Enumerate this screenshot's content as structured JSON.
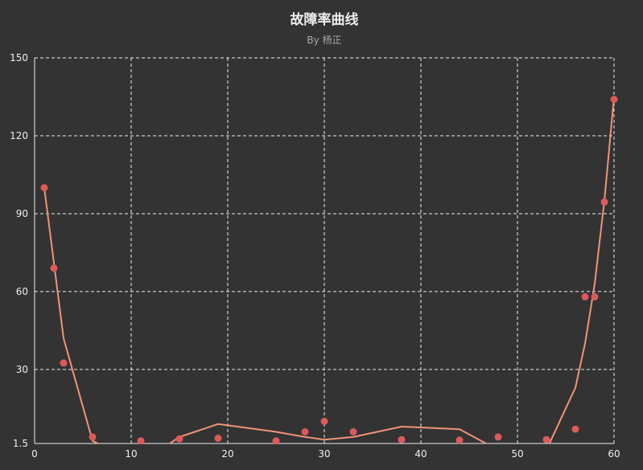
{
  "chart_data": {
    "type": "scatter",
    "title": "故障率曲线",
    "subtitle": "By 杨正",
    "xlabel": "",
    "ylabel": "",
    "xlim": [
      0,
      60
    ],
    "ylim": [
      1.5,
      150
    ],
    "x_ticks": [
      "0",
      "10",
      "20",
      "30",
      "40",
      "50",
      "60"
    ],
    "y_ticks": [
      "1.5",
      "30",
      "60",
      "90",
      "120",
      "150"
    ],
    "y_tick_values": [
      1.5,
      30,
      60,
      90,
      120,
      150
    ],
    "x_tick_values": [
      0,
      10,
      20,
      30,
      40,
      50,
      60
    ],
    "grid": true,
    "legend": "none",
    "colors": {
      "points": "#dd5a5a",
      "line": "#f09478",
      "background": "#333333",
      "text": "#eeeeee"
    },
    "series": [
      {
        "type": "scatter",
        "points": [
          [
            1,
            100
          ],
          [
            2,
            69
          ],
          [
            3,
            32.5
          ],
          [
            6,
            4
          ],
          [
            11,
            2.5
          ],
          [
            15,
            3.3
          ],
          [
            19,
            3.5
          ],
          [
            25,
            2.5
          ],
          [
            28,
            6
          ],
          [
            30,
            10
          ],
          [
            33,
            6
          ],
          [
            38,
            3
          ],
          [
            44,
            2.8
          ],
          [
            48,
            4
          ],
          [
            53,
            3
          ],
          [
            56,
            7
          ],
          [
            57,
            58
          ],
          [
            58,
            58
          ],
          [
            59,
            94.5
          ],
          [
            60,
            134
          ]
        ]
      },
      {
        "type": "line",
        "points": [
          [
            1,
            100
          ],
          [
            3,
            42
          ],
          [
            6,
            2.5
          ],
          [
            8,
            -1
          ],
          [
            13,
            -1
          ],
          [
            15,
            4
          ],
          [
            19,
            9
          ],
          [
            25,
            6
          ],
          [
            28,
            4
          ],
          [
            30,
            3
          ],
          [
            33,
            4
          ],
          [
            38,
            8
          ],
          [
            44,
            7
          ],
          [
            48,
            -1
          ],
          [
            53,
            -1
          ],
          [
            56,
            23
          ],
          [
            57,
            40
          ],
          [
            58,
            63
          ],
          [
            59,
            95
          ],
          [
            60,
            135
          ]
        ]
      }
    ]
  }
}
